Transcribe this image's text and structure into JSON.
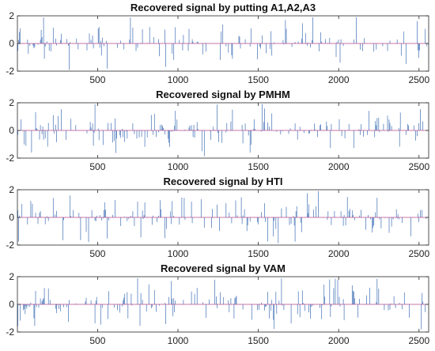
{
  "chart_data": [
    {
      "type": "stem",
      "title": "Recovered signal by putting A1,A2,A3",
      "xlim": [
        1,
        2560
      ],
      "ylim": [
        -2,
        2
      ],
      "xticks": [
        500,
        1000,
        1500,
        2000,
        2500
      ],
      "yticks": [
        -2,
        0,
        2
      ],
      "grid": false,
      "seed": 11
    },
    {
      "type": "stem",
      "title": "Recovered signal by PMHM",
      "xlim": [
        1,
        2560
      ],
      "ylim": [
        -2,
        2
      ],
      "xticks": [
        500,
        1000,
        1500,
        2000,
        2500
      ],
      "yticks": [
        -2,
        0,
        2
      ],
      "grid": false,
      "seed": 23
    },
    {
      "type": "stem",
      "title": "Recovered signal by HTI",
      "xlim": [
        1,
        2560
      ],
      "ylim": [
        -2,
        2
      ],
      "xticks": [
        500,
        1000,
        1500,
        2000,
        2500
      ],
      "yticks": [
        -2,
        0,
        2
      ],
      "grid": false,
      "seed": 37
    },
    {
      "type": "stem",
      "title": "Recovered signal by VAM",
      "xlim": [
        1,
        2560
      ],
      "ylim": [
        -2,
        2
      ],
      "xticks": [
        500,
        1000,
        1500,
        2000,
        2500
      ],
      "yticks": [
        -2,
        0,
        2
      ],
      "grid": false,
      "seed": 53
    }
  ],
  "colors": {
    "stem": "#3f6fb5",
    "baseline": "#b04a8c",
    "axes": "#262626"
  }
}
